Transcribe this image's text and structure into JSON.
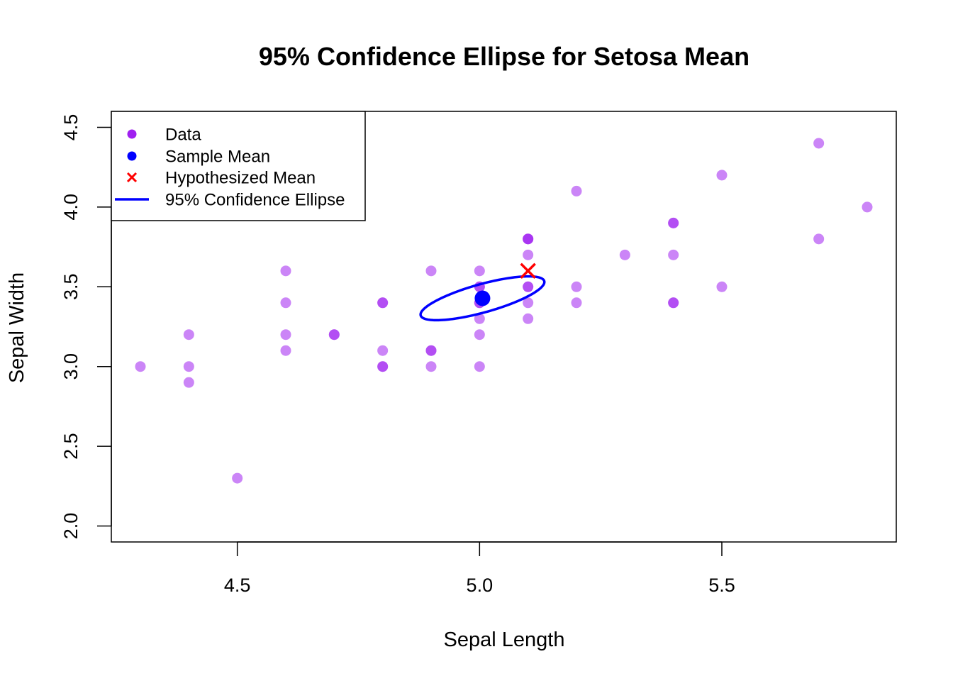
{
  "chart_data": {
    "type": "scatter",
    "title": "95% Confidence Ellipse for Setosa Mean",
    "xlabel": "Sepal Length",
    "ylabel": "Sepal Width",
    "xlim": [
      4.24,
      5.86
    ],
    "ylim": [
      1.9,
      4.6
    ],
    "xticks": [
      "4.5",
      "5.0",
      "5.5"
    ],
    "yticks": [
      "2.0",
      "2.5",
      "3.0",
      "3.5",
      "4.0",
      "4.5"
    ],
    "grid": false,
    "legend_position": "top-left",
    "legend": [
      {
        "label": "Data",
        "symbol": "dot",
        "color": "#A020F0"
      },
      {
        "label": "Sample Mean",
        "symbol": "dot",
        "color": "#0000FF"
      },
      {
        "label": "Hypothesized Mean",
        "symbol": "cross",
        "color": "#FF0000"
      },
      {
        "label": "95% Confidence Ellipse",
        "symbol": "line",
        "color": "#0000FF"
      }
    ],
    "colors": {
      "data": "#A020F0",
      "sample_mean": "#0000FF",
      "hypothesized_mean": "#FF0000",
      "ellipse": "#0000FF"
    },
    "series": [
      {
        "name": "Data",
        "points": [
          [
            5.1,
            3.5
          ],
          [
            4.9,
            3.0
          ],
          [
            4.7,
            3.2
          ],
          [
            4.6,
            3.1
          ],
          [
            5.0,
            3.6
          ],
          [
            5.4,
            3.9
          ],
          [
            4.6,
            3.4
          ],
          [
            5.0,
            3.4
          ],
          [
            4.4,
            2.9
          ],
          [
            4.9,
            3.1
          ],
          [
            5.4,
            3.7
          ],
          [
            4.8,
            3.4
          ],
          [
            4.8,
            3.0
          ],
          [
            4.3,
            3.0
          ],
          [
            5.8,
            4.0
          ],
          [
            5.7,
            4.4
          ],
          [
            5.4,
            3.9
          ],
          [
            5.1,
            3.5
          ],
          [
            5.7,
            3.8
          ],
          [
            5.1,
            3.8
          ],
          [
            5.4,
            3.4
          ],
          [
            5.1,
            3.7
          ],
          [
            4.6,
            3.6
          ],
          [
            5.1,
            3.3
          ],
          [
            4.8,
            3.4
          ],
          [
            5.0,
            3.0
          ],
          [
            5.0,
            3.4
          ],
          [
            5.2,
            3.5
          ],
          [
            5.2,
            3.4
          ],
          [
            4.7,
            3.2
          ],
          [
            4.8,
            3.1
          ],
          [
            5.4,
            3.4
          ],
          [
            5.2,
            4.1
          ],
          [
            5.5,
            4.2
          ],
          [
            4.9,
            3.1
          ],
          [
            5.0,
            3.2
          ],
          [
            5.5,
            3.5
          ],
          [
            4.9,
            3.6
          ],
          [
            4.4,
            3.0
          ],
          [
            5.1,
            3.4
          ],
          [
            5.0,
            3.5
          ],
          [
            4.5,
            2.3
          ],
          [
            4.4,
            3.2
          ],
          [
            5.0,
            3.5
          ],
          [
            5.1,
            3.8
          ],
          [
            4.8,
            3.0
          ],
          [
            5.1,
            3.8
          ],
          [
            4.6,
            3.2
          ],
          [
            5.3,
            3.7
          ],
          [
            5.0,
            3.3
          ]
        ]
      },
      {
        "name": "Sample Mean",
        "points": [
          [
            5.006,
            3.428
          ]
        ]
      },
      {
        "name": "Hypothesized Mean",
        "points": [
          [
            5.1,
            3.6
          ]
        ]
      }
    ],
    "ellipse": {
      "name": "95% Confidence Ellipse",
      "center": [
        5.006,
        3.428
      ],
      "cov": [
        [
          0.12425,
          0.09922
        ],
        [
          0.09922,
          0.14369
        ]
      ],
      "n": 50,
      "critical_value": 6.57
    }
  }
}
